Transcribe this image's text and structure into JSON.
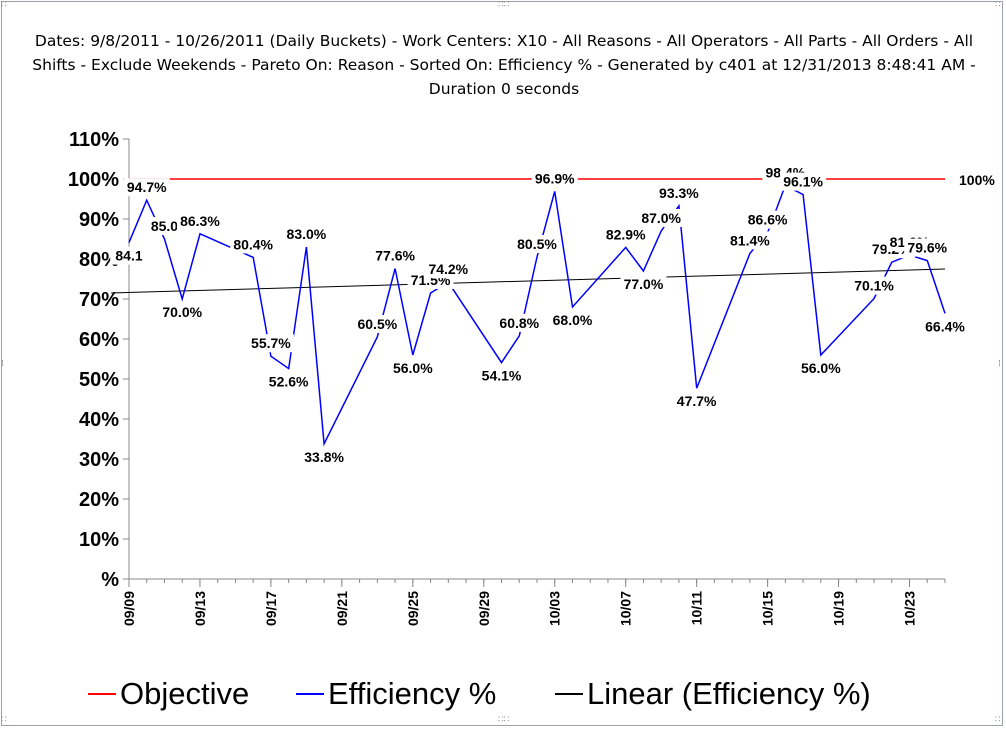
{
  "chart_data": {
    "type": "line",
    "title": "Dates: 9/8/2011 - 10/26/2011 (Daily Buckets) - Work Centers: X10 - All Reasons - All Operators - All Parts - All Orders - All Shifts - Exclude Weekends - Pareto On: Reason - Sorted On: Efficiency % - Generated by c401 at 12/31/2013 8:48:41 AM - Duration 0 seconds",
    "xlabel": "",
    "ylabel": "",
    "ylim": [
      0,
      110
    ],
    "xlim": [
      "09/09",
      "10/25"
    ],
    "x_tick_labels": [
      "09/09",
      "09/13",
      "09/17",
      "09/21",
      "09/25",
      "09/29",
      "10/03",
      "10/07",
      "10/11",
      "10/15",
      "10/19",
      "10/23"
    ],
    "y_tick_labels": [
      "%",
      "10%",
      "20%",
      "30%",
      "40%",
      "50%",
      "60%",
      "70%",
      "80%",
      "90%",
      "100%",
      "110%"
    ],
    "grid": false,
    "legend_position": "bottom",
    "series": [
      {
        "name": "Efficiency %",
        "color": "#0000ff",
        "points": [
          {
            "x": "09/09",
            "y": 84.1,
            "label": "84.1"
          },
          {
            "x": "09/10",
            "y": 94.7,
            "label": "94.7%"
          },
          {
            "x": "09/11",
            "y": 85.0,
            "label": "85.0"
          },
          {
            "x": "09/12",
            "y": 70.0,
            "label": "70.0%"
          },
          {
            "x": "09/13",
            "y": 86.3,
            "label": "86.3%"
          },
          {
            "x": "09/16",
            "y": 80.4,
            "label": "80.4%"
          },
          {
            "x": "09/17",
            "y": 55.7,
            "label": "55.7%"
          },
          {
            "x": "09/18",
            "y": 52.6,
            "label": "52.6%"
          },
          {
            "x": "09/19",
            "y": 83.0,
            "label": "83.0%"
          },
          {
            "x": "09/20",
            "y": 33.8,
            "label": "33.8%"
          },
          {
            "x": "09/23",
            "y": 60.5,
            "label": "60.5%"
          },
          {
            "x": "09/24",
            "y": 77.6,
            "label": "77.6%"
          },
          {
            "x": "09/25",
            "y": 56.0,
            "label": "56.0%"
          },
          {
            "x": "09/26",
            "y": 71.5,
            "label": "71.5%"
          },
          {
            "x": "09/27",
            "y": 74.2,
            "label": "74.2%"
          },
          {
            "x": "09/30",
            "y": 54.1,
            "label": "54.1%"
          },
          {
            "x": "10/01",
            "y": 60.8,
            "label": "60.8%"
          },
          {
            "x": "10/02",
            "y": 80.5,
            "label": "80.5%"
          },
          {
            "x": "10/03",
            "y": 96.9,
            "label": "96.9%"
          },
          {
            "x": "10/04",
            "y": 68.0,
            "label": "68.0%"
          },
          {
            "x": "10/07",
            "y": 82.9,
            "label": "82.9%"
          },
          {
            "x": "10/08",
            "y": 77.0,
            "label": "77.0%"
          },
          {
            "x": "10/09",
            "y": 87.0,
            "label": "87.0%"
          },
          {
            "x": "10/10",
            "y": 93.3,
            "label": "93.3%"
          },
          {
            "x": "10/11",
            "y": 47.7,
            "label": "47.7%"
          },
          {
            "x": "10/14",
            "y": 81.4,
            "label": "81.4%"
          },
          {
            "x": "10/15",
            "y": 86.6,
            "label": "86.6%"
          },
          {
            "x": "10/16",
            "y": 98.4,
            "label": "98.4%"
          },
          {
            "x": "10/17",
            "y": 96.1,
            "label": "96.1%"
          },
          {
            "x": "10/18",
            "y": 56.0,
            "label": "56.0%"
          },
          {
            "x": "10/21",
            "y": 70.1,
            "label": "70.1%"
          },
          {
            "x": "10/22",
            "y": 79.2,
            "label": "79.2%"
          },
          {
            "x": "10/23",
            "y": 81.0,
            "label": "81.0%"
          },
          {
            "x": "10/24",
            "y": 79.6,
            "label": "79.6%"
          },
          {
            "x": "10/25",
            "y": 66.4,
            "label": "66.4%"
          }
        ]
      },
      {
        "name": "Objective",
        "color": "#ff0000",
        "points": [
          {
            "x": "09/09",
            "y": 100
          },
          {
            "x": "10/25",
            "y": 100,
            "label": "100%"
          }
        ]
      },
      {
        "name": "Linear (Efficiency %)",
        "color": "#000000",
        "points": [
          {
            "x": "09/08",
            "y": 71.5
          },
          {
            "x": "10/25",
            "y": 77.5
          }
        ]
      }
    ]
  },
  "legend": {
    "items": [
      {
        "label": "Objective",
        "color": "#ff0000"
      },
      {
        "label": "Efficiency %",
        "color": "#0000ff"
      },
      {
        "label": "Linear (Efficiency %)",
        "color": "#000000"
      }
    ]
  }
}
